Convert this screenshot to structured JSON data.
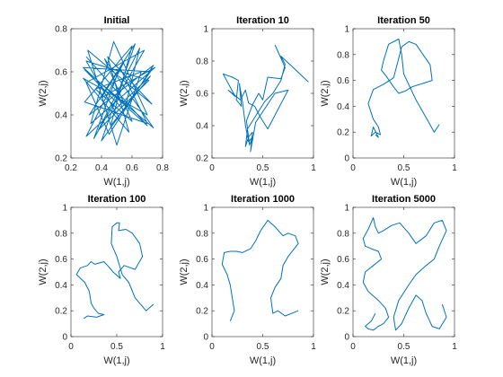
{
  "figure": {
    "background": "#ffffff",
    "axis_color": "#262626",
    "line_color": "#0072bd"
  },
  "chart_data": [
    {
      "type": "line",
      "title": "Initial",
      "xlabel": "W(1,j)",
      "ylabel": "W(2,j)",
      "xlim": [
        0.2,
        0.8
      ],
      "ylim": [
        0.2,
        0.8
      ],
      "xticks": [
        0.2,
        0.4,
        0.6,
        0.8
      ],
      "yticks": [
        0.2,
        0.4,
        0.6,
        0.8
      ],
      "xticklabels": [
        "0.2",
        "0.4",
        "0.6",
        "0.8"
      ],
      "yticklabels": [
        "0.2",
        "0.4",
        "0.6",
        "0.8"
      ],
      "x": [
        0.3,
        0.7,
        0.28,
        0.72,
        0.4,
        0.62,
        0.32,
        0.74,
        0.45,
        0.3,
        0.68,
        0.35,
        0.52,
        0.7,
        0.29,
        0.6,
        0.46,
        0.72,
        0.3,
        0.55,
        0.4,
        0.75,
        0.33,
        0.48,
        0.7,
        0.28,
        0.58,
        0.44,
        0.73,
        0.31,
        0.5,
        0.66,
        0.36,
        0.6,
        0.42,
        0.74,
        0.29,
        0.55,
        0.65,
        0.38,
        0.71,
        0.3,
        0.52
      ],
      "y": [
        0.67,
        0.35,
        0.62,
        0.6,
        0.28,
        0.73,
        0.4,
        0.63,
        0.31,
        0.55,
        0.7,
        0.29,
        0.62,
        0.36,
        0.46,
        0.72,
        0.35,
        0.58,
        0.3,
        0.65,
        0.48,
        0.62,
        0.36,
        0.74,
        0.4,
        0.57,
        0.32,
        0.67,
        0.45,
        0.7,
        0.26,
        0.6,
        0.52,
        0.37,
        0.66,
        0.34,
        0.61,
        0.42,
        0.71,
        0.33,
        0.56,
        0.65,
        0.38
      ]
    },
    {
      "type": "line",
      "title": "Iteration 10",
      "xlabel": "W(1,j)",
      "ylabel": "W(2,j)",
      "xlim": [
        0,
        1
      ],
      "ylim": [
        0.2,
        1
      ],
      "xticks": [
        0,
        0.5,
        1
      ],
      "yticks": [
        0.2,
        0.4,
        0.6,
        0.8,
        1
      ],
      "xticklabels": [
        "0",
        "0.5",
        "1"
      ],
      "yticklabels": [
        "0.2",
        "0.4",
        "0.6",
        "0.8",
        "1"
      ],
      "x": [
        0.62,
        0.72,
        0.68,
        0.55,
        0.5,
        0.46,
        0.4,
        0.34,
        0.37,
        0.4,
        0.36,
        0.33,
        0.3,
        0.27,
        0.29,
        0.24,
        0.26,
        0.2,
        0.11,
        0.23,
        0.16,
        0.28,
        0.33,
        0.36,
        0.42,
        0.48,
        0.55,
        0.7,
        0.75,
        0.62,
        0.43,
        0.38,
        0.4,
        0.36,
        0.33,
        0.35,
        0.42,
        0.52,
        0.6,
        0.68,
        0.72,
        0.68,
        0.8,
        0.95
      ],
      "y": [
        0.9,
        0.76,
        0.69,
        0.7,
        0.56,
        0.6,
        0.53,
        0.43,
        0.28,
        0.33,
        0.3,
        0.4,
        0.55,
        0.66,
        0.52,
        0.56,
        0.68,
        0.7,
        0.72,
        0.58,
        0.62,
        0.56,
        0.62,
        0.54,
        0.52,
        0.45,
        0.38,
        0.56,
        0.62,
        0.6,
        0.42,
        0.24,
        0.36,
        0.33,
        0.27,
        0.38,
        0.45,
        0.55,
        0.6,
        0.68,
        0.78,
        0.83,
        0.76,
        0.67
      ]
    },
    {
      "type": "line",
      "title": "Iteration 50",
      "xlabel": "W(1,j)",
      "ylabel": "W(2,j)",
      "xlim": [
        0,
        1
      ],
      "ylim": [
        0,
        1
      ],
      "xticks": [
        0,
        0.5,
        1
      ],
      "yticks": [
        0,
        0.2,
        0.4,
        0.6,
        0.8,
        1
      ],
      "xticklabels": [
        "0",
        "0.5",
        "1"
      ],
      "yticklabels": [
        "0",
        "0.2",
        "0.4",
        "0.6",
        "0.8",
        "1"
      ],
      "x": [
        0.85,
        0.8,
        0.75,
        0.62,
        0.5,
        0.48,
        0.45,
        0.35,
        0.3,
        0.28,
        0.33,
        0.4,
        0.45,
        0.52,
        0.58,
        0.7,
        0.78,
        0.76,
        0.62,
        0.55,
        0.48,
        0.4,
        0.3,
        0.25,
        0.2,
        0.15,
        0.2,
        0.25,
        0.27,
        0.22,
        0.18,
        0.2,
        0.25,
        0.22
      ],
      "y": [
        0.26,
        0.2,
        0.27,
        0.45,
        0.65,
        0.8,
        0.92,
        0.88,
        0.75,
        0.68,
        0.63,
        0.55,
        0.5,
        0.52,
        0.55,
        0.58,
        0.6,
        0.72,
        0.88,
        0.9,
        0.86,
        0.62,
        0.57,
        0.55,
        0.53,
        0.42,
        0.3,
        0.24,
        0.18,
        0.2,
        0.17,
        0.24,
        0.16,
        0.18
      ]
    },
    {
      "type": "line",
      "title": "Iteration 100",
      "xlabel": "W(1,j)",
      "ylabel": "W(2,j)",
      "xlim": [
        0,
        1
      ],
      "ylim": [
        0,
        1
      ],
      "xticks": [
        0,
        0.5,
        1
      ],
      "yticks": [
        0,
        0.2,
        0.4,
        0.6,
        0.8,
        1
      ],
      "xticklabels": [
        "0",
        "0.5",
        "1"
      ],
      "yticklabels": [
        "0",
        "0.2",
        "0.4",
        "0.6",
        "0.8",
        "1"
      ],
      "x": [
        0.9,
        0.82,
        0.7,
        0.63,
        0.56,
        0.5,
        0.44,
        0.45,
        0.5,
        0.53,
        0.52,
        0.6,
        0.67,
        0.75,
        0.78,
        0.7,
        0.58,
        0.52,
        0.54,
        0.46,
        0.4,
        0.36,
        0.26,
        0.22,
        0.18,
        0.1,
        0.06,
        0.15,
        0.2,
        0.22,
        0.25,
        0.3,
        0.36,
        0.28,
        0.18,
        0.14
      ],
      "y": [
        0.25,
        0.2,
        0.3,
        0.42,
        0.48,
        0.62,
        0.72,
        0.85,
        0.88,
        0.88,
        0.82,
        0.83,
        0.8,
        0.72,
        0.62,
        0.52,
        0.55,
        0.5,
        0.45,
        0.5,
        0.55,
        0.58,
        0.56,
        0.58,
        0.55,
        0.53,
        0.48,
        0.42,
        0.35,
        0.26,
        0.22,
        0.18,
        0.17,
        0.15,
        0.16,
        0.14
      ]
    },
    {
      "type": "line",
      "title": "Iteration 1000",
      "xlabel": "W(1,j)",
      "ylabel": "W(2,j)",
      "xlim": [
        0,
        1
      ],
      "ylim": [
        0,
        1
      ],
      "xticks": [
        0,
        0.5,
        1
      ],
      "yticks": [
        0,
        0.2,
        0.4,
        0.6,
        0.8,
        1
      ],
      "xticklabels": [
        "0",
        "0.5",
        "1"
      ],
      "yticklabels": [
        "0",
        "0.2",
        "0.4",
        "0.6",
        "0.8",
        "1"
      ],
      "x": [
        0.85,
        0.72,
        0.65,
        0.6,
        0.58,
        0.62,
        0.68,
        0.7,
        0.75,
        0.85,
        0.82,
        0.75,
        0.7,
        0.62,
        0.55,
        0.48,
        0.43,
        0.38,
        0.3,
        0.24,
        0.18,
        0.12,
        0.1,
        0.15,
        0.18,
        0.2,
        0.22,
        0.18
      ],
      "y": [
        0.2,
        0.16,
        0.2,
        0.18,
        0.3,
        0.38,
        0.45,
        0.55,
        0.62,
        0.72,
        0.78,
        0.8,
        0.78,
        0.85,
        0.9,
        0.82,
        0.74,
        0.68,
        0.65,
        0.66,
        0.66,
        0.65,
        0.56,
        0.48,
        0.4,
        0.3,
        0.2,
        0.12
      ]
    },
    {
      "type": "line",
      "title": "Iteration 5000",
      "xlabel": "W(1,j)",
      "ylabel": "W(2,j)",
      "xlim": [
        0,
        1
      ],
      "ylim": [
        0,
        1
      ],
      "xticks": [
        0,
        0.5,
        1
      ],
      "yticks": [
        0,
        0.2,
        0.4,
        0.6,
        0.8,
        1
      ],
      "xticklabels": [
        "0",
        "0.5",
        "1"
      ],
      "yticklabels": [
        "0",
        "0.2",
        "0.4",
        "0.6",
        "0.8",
        "1"
      ],
      "x": [
        0.88,
        0.92,
        0.85,
        0.78,
        0.72,
        0.68,
        0.62,
        0.55,
        0.48,
        0.42,
        0.4,
        0.45,
        0.55,
        0.62,
        0.72,
        0.8,
        0.85,
        0.92,
        0.88,
        0.8,
        0.72,
        0.62,
        0.55,
        0.46,
        0.38,
        0.3,
        0.25,
        0.22,
        0.2,
        0.15,
        0.1,
        0.12,
        0.18,
        0.25,
        0.28,
        0.2,
        0.12,
        0.1,
        0.15,
        0.25,
        0.32,
        0.35,
        0.3,
        0.25,
        0.2,
        0.15,
        0.12,
        0.18,
        0.22
      ],
      "y": [
        0.25,
        0.15,
        0.06,
        0.08,
        0.18,
        0.28,
        0.32,
        0.22,
        0.1,
        0.05,
        0.15,
        0.28,
        0.4,
        0.48,
        0.55,
        0.6,
        0.7,
        0.82,
        0.9,
        0.88,
        0.78,
        0.72,
        0.8,
        0.88,
        0.86,
        0.82,
        0.8,
        0.85,
        0.92,
        0.83,
        0.76,
        0.7,
        0.68,
        0.66,
        0.6,
        0.55,
        0.5,
        0.42,
        0.35,
        0.28,
        0.22,
        0.15,
        0.1,
        0.08,
        0.05,
        0.06,
        0.08,
        0.12,
        0.18
      ]
    }
  ]
}
